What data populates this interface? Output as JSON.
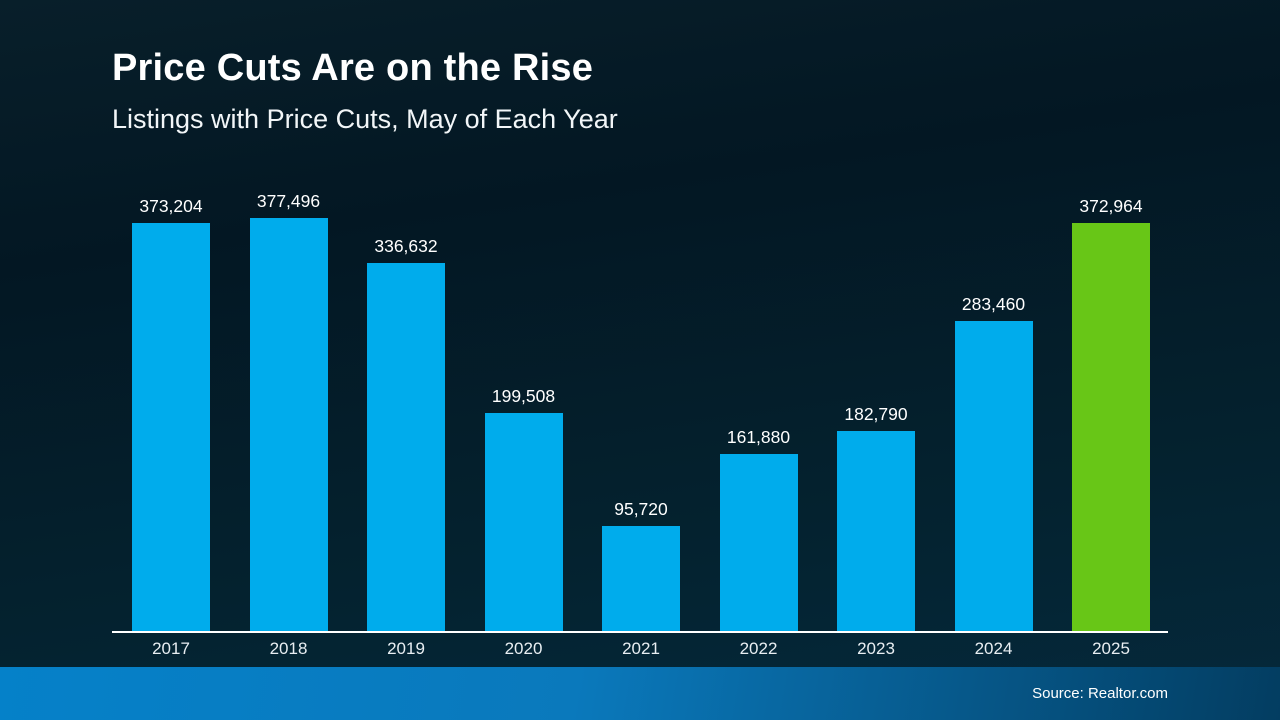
{
  "header": {
    "title": "Price Cuts Are on the Rise",
    "subtitle": "Listings with Price Cuts, May of Each Year"
  },
  "chart_data": {
    "type": "bar",
    "title": "Price Cuts Are on the Rise",
    "subtitle": "Listings with Price Cuts, May of Each Year",
    "categories": [
      "2017",
      "2018",
      "2019",
      "2020",
      "2021",
      "2022",
      "2023",
      "2024",
      "2025"
    ],
    "values": [
      373204,
      377496,
      336632,
      199508,
      95720,
      161880,
      182790,
      283460,
      372964
    ],
    "value_labels": [
      "373,204",
      "377,496",
      "336,632",
      "199,508",
      "95,720",
      "161,880",
      "182,790",
      "283,460",
      "372,964"
    ],
    "highlight_index": 8,
    "highlight_category": "2025",
    "xlabel": "",
    "ylabel": "",
    "ylim": [
      0,
      380000
    ],
    "grid": false,
    "legend": false,
    "colors": {
      "bar": "#00acec",
      "highlight_bar": "#68c617",
      "axis_line": "#ffffff",
      "value_label_text": "#ffffff",
      "tick_label_text": "#e8eef2"
    }
  },
  "footer": {
    "source_label": "Source: Realtor.com"
  },
  "background": {
    "top_color": "#031723",
    "bottom_color": "#05293c"
  }
}
